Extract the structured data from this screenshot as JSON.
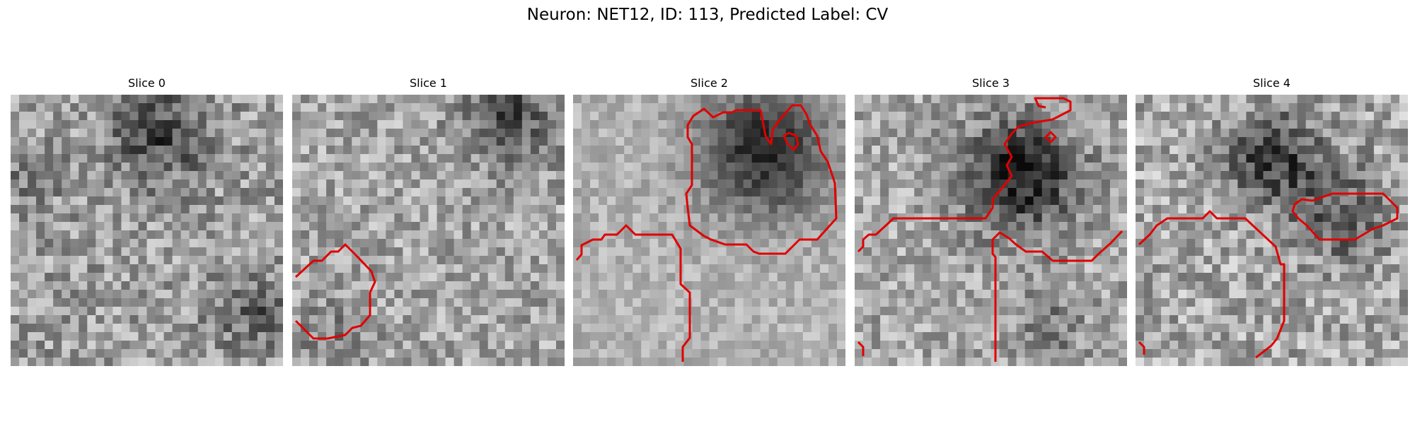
{
  "figure": {
    "title": "Neuron: NET12, ID: 113, Predicted Label: CV"
  },
  "panels": [
    {
      "title": "Slice 0"
    },
    {
      "title": "Slice 1"
    },
    {
      "title": "Slice 2"
    },
    {
      "title": "Slice 3"
    },
    {
      "title": "Slice 4"
    }
  ],
  "colors": {
    "contour": "#e00000",
    "colormap": "gray"
  }
}
